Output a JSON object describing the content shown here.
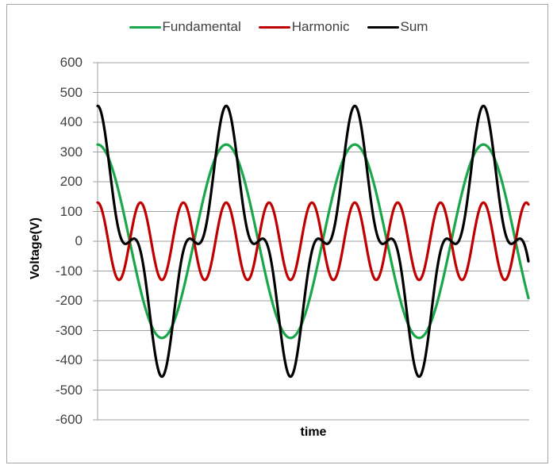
{
  "chart_data": {
    "type": "line",
    "title": "",
    "xlabel": "time",
    "ylabel": "Voltage(V)",
    "ylim": [
      -600,
      600
    ],
    "yticks": [
      600,
      500,
      400,
      300,
      200,
      100,
      0,
      -100,
      -200,
      -300,
      -400,
      -500,
      -600
    ],
    "grid": "horizontal",
    "legend_position": "top",
    "x_description": "time, approx. 3.35 cycles of fundamental, no tick labels",
    "series": [
      {
        "name": "Fundamental",
        "color": "#1aa64a",
        "function": "325*cos(2*pi*t)",
        "amplitude": 325,
        "harmonic_order": 1
      },
      {
        "name": "Harmonic",
        "color": "#c00000",
        "function": "130*cos(3*2*pi*t)",
        "amplitude": 130,
        "harmonic_order": 3
      },
      {
        "name": "Sum",
        "color": "#000000",
        "function": "325*cos(2*pi*t)+130*cos(6*pi*t)",
        "amplitude": 455
      }
    ],
    "cycles_shown": 3.35,
    "sample_points": {
      "t_cycles": [
        0,
        0.25,
        0.5,
        0.75,
        1.0,
        1.25,
        1.5,
        1.75,
        2.0,
        2.25,
        2.5,
        2.75,
        3.0,
        3.25
      ],
      "Fundamental": [
        325,
        0,
        -325,
        0,
        325,
        0,
        -325,
        0,
        325,
        0,
        -325,
        0,
        325,
        0
      ],
      "Harmonic": [
        130,
        0,
        -130,
        0,
        130,
        0,
        -130,
        0,
        130,
        0,
        -130,
        0,
        130,
        0
      ],
      "Sum": [
        455,
        0,
        -455,
        0,
        455,
        0,
        -455,
        0,
        455,
        0,
        -455,
        0,
        455,
        0
      ]
    }
  },
  "legend": {
    "items": [
      {
        "label": "Fundamental",
        "color": "#1aa64a"
      },
      {
        "label": "Harmonic",
        "color": "#c00000"
      },
      {
        "label": "Sum",
        "color": "#000000"
      }
    ]
  },
  "axes": {
    "ylabel": "Voltage(V)",
    "xlabel": "time",
    "yticks": [
      "600",
      "500",
      "400",
      "300",
      "200",
      "100",
      "0",
      "-100",
      "-200",
      "-300",
      "-400",
      "-500",
      "-600"
    ]
  }
}
